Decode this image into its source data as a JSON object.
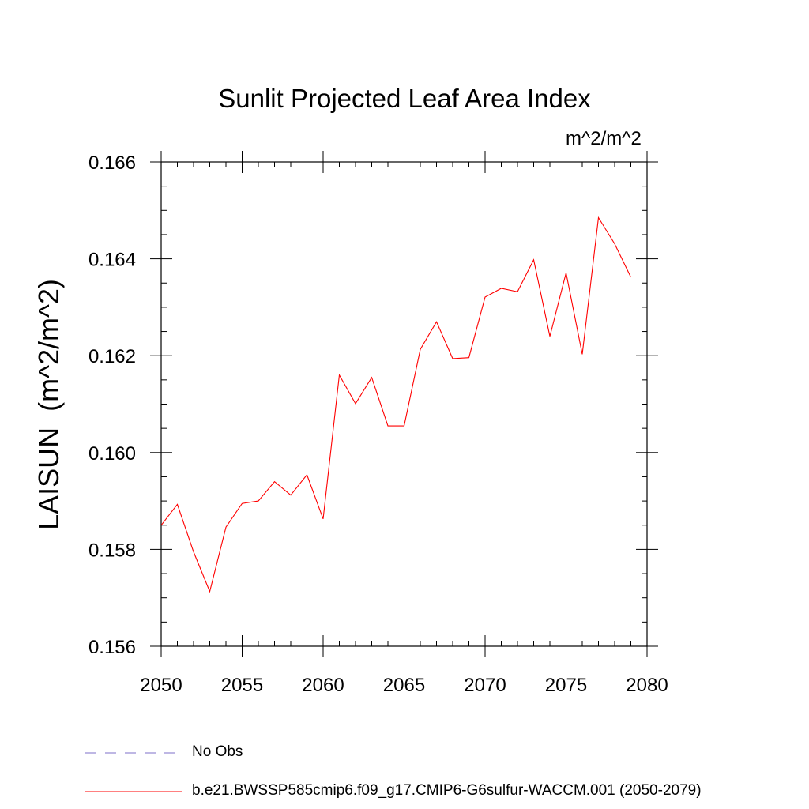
{
  "chart_data": {
    "type": "line",
    "title": "Sunlit Projected Leaf Area Index",
    "units_label": "m^2/m^2",
    "ylabel": "LAISUN  (m^2/m^2)",
    "xlabel": "",
    "xlim": [
      2050,
      2080
    ],
    "ylim": [
      0.156,
      0.166
    ],
    "x_ticks": [
      "2050",
      "2055",
      "2060",
      "2065",
      "2070",
      "2075",
      "2080"
    ],
    "y_ticks": [
      "0.156",
      "0.158",
      "0.160",
      "0.162",
      "0.164",
      "0.166"
    ],
    "grid": false,
    "legend_position": "bottom",
    "series": [
      {
        "name": "b.e21.BWSSP585cmip6.f09_g17.CMIP6-G6sulfur-WACCM.001 (2050-2079)",
        "color": "#ff0000",
        "style": "solid",
        "x": [
          2050,
          2051,
          2052,
          2053,
          2054,
          2055,
          2056,
          2057,
          2058,
          2059,
          2060,
          2061,
          2062,
          2063,
          2064,
          2065,
          2066,
          2067,
          2068,
          2069,
          2070,
          2071,
          2072,
          2073,
          2074,
          2075,
          2076,
          2077,
          2078,
          2079
        ],
        "values": [
          0.1585,
          0.15893,
          0.15795,
          0.15713,
          0.15846,
          0.15895,
          0.159,
          0.1594,
          0.15912,
          0.15954,
          0.15863,
          0.1616,
          0.16101,
          0.16155,
          0.16055,
          0.16055,
          0.16213,
          0.1627,
          0.16194,
          0.16196,
          0.16321,
          0.16339,
          0.16332,
          0.16398,
          0.1624,
          0.16371,
          0.16203,
          0.16485,
          0.16431,
          0.16362
        ]
      }
    ],
    "legend": [
      {
        "label": "No Obs",
        "color": "#7d6fc8",
        "style": "dashed"
      },
      {
        "label": "b.e21.BWSSP585cmip6.f09_g17.CMIP6-G6sulfur-WACCM.001 (2050-2079)",
        "color": "#ff0000",
        "style": "solid"
      }
    ]
  }
}
